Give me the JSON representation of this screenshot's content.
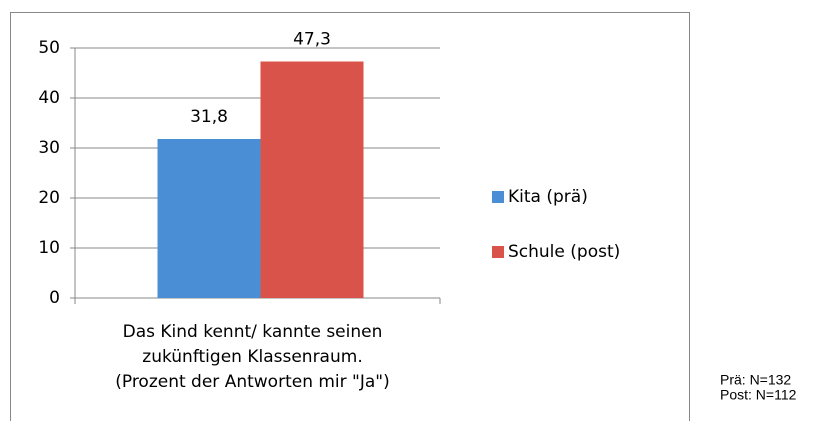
{
  "chart_data": {
    "type": "bar",
    "categories": [
      [
        "Das Kind kennt/ kannte seinen",
        "zukünftigen Klassenraum.",
        "(Prozent der Antworten mir \"Ja\")"
      ]
    ],
    "series": [
      {
        "name": "Kita (prä)",
        "color": "#4a8fd6",
        "values": [
          31.8
        ],
        "value_labels": [
          "31,8"
        ]
      },
      {
        "name": "Schule (post)",
        "color": "#d9534a",
        "values": [
          47.3
        ],
        "value_labels": [
          "47,3"
        ]
      }
    ],
    "ylim": [
      0,
      50
    ],
    "yticks": [
      0,
      10,
      20,
      30,
      40,
      50
    ],
    "grid": true,
    "legend": "right"
  },
  "notes": [
    "Prä: N=132",
    "Post: N=112"
  ]
}
